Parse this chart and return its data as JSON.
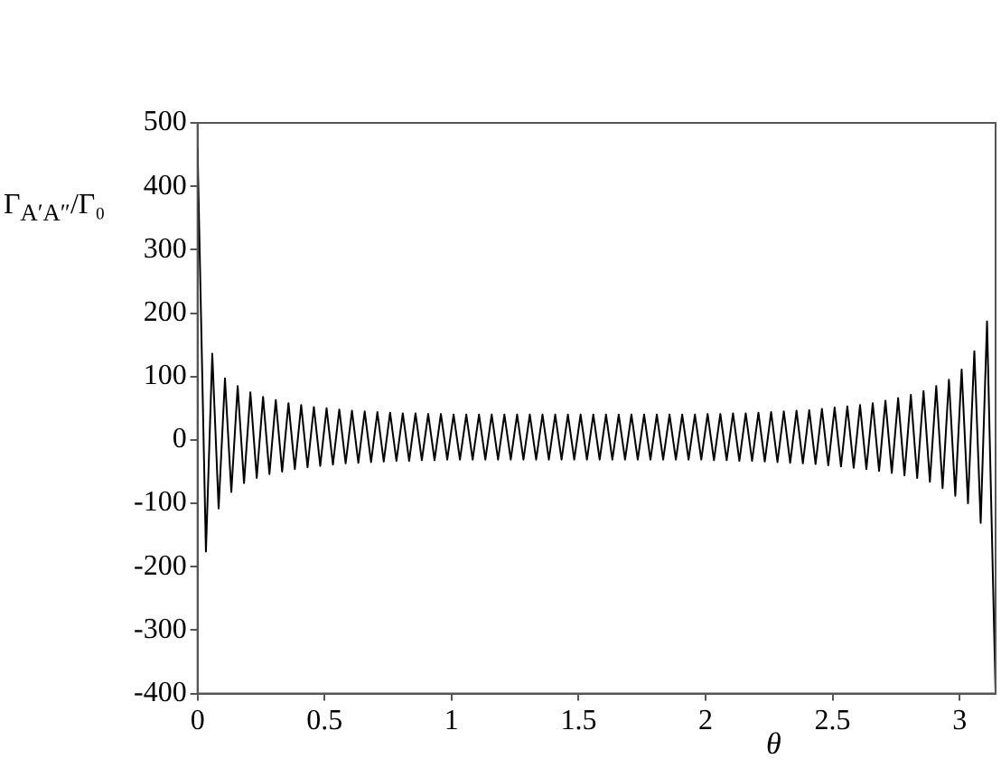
{
  "chart_data": {
    "type": "line",
    "xlabel": "θ",
    "ylabel": "Γ$_{A′A″}$/Γ₀",
    "xlim": [
      0,
      3.1416
    ],
    "xticks": [
      0,
      0.5,
      1,
      1.5,
      2,
      2.5,
      3
    ],
    "ylim": [
      -400,
      500
    ],
    "yticks": [
      -400,
      -300,
      -200,
      -100,
      0,
      100,
      200,
      300,
      400,
      500
    ],
    "grid": false,
    "legend": false,
    "marker": "none",
    "line_style": "solid",
    "series": [
      {
        "color": "#000000",
        "x": [
          0,
          0.033,
          0.058,
          0.083,
          0.108,
          0.133,
          0.158,
          0.183,
          0.208,
          0.233,
          0.258,
          0.283,
          0.308,
          0.333,
          0.358,
          0.383,
          0.408,
          0.433,
          0.458,
          0.483,
          0.508,
          0.533,
          0.558,
          0.583,
          0.608,
          0.633,
          0.658,
          0.683,
          0.708,
          0.733,
          0.758,
          0.783,
          0.808,
          0.833,
          0.858,
          0.883,
          0.908,
          0.933,
          0.958,
          0.983,
          1.008,
          1.033,
          1.058,
          1.083,
          1.108,
          1.133,
          1.158,
          1.183,
          1.208,
          1.233,
          1.258,
          1.283,
          1.308,
          1.333,
          1.358,
          1.383,
          1.408,
          1.433,
          1.458,
          1.483,
          1.508,
          1.533,
          1.558,
          1.583,
          1.608,
          1.633,
          1.658,
          1.683,
          1.708,
          1.733,
          1.758,
          1.783,
          1.808,
          1.833,
          1.858,
          1.883,
          1.908,
          1.933,
          1.958,
          1.983,
          2.008,
          2.033,
          2.058,
          2.083,
          2.108,
          2.133,
          2.158,
          2.183,
          2.208,
          2.233,
          2.258,
          2.283,
          2.308,
          2.333,
          2.358,
          2.383,
          2.408,
          2.433,
          2.458,
          2.483,
          2.508,
          2.533,
          2.558,
          2.583,
          2.608,
          2.633,
          2.658,
          2.683,
          2.708,
          2.733,
          2.758,
          2.783,
          2.808,
          2.833,
          2.858,
          2.883,
          2.908,
          2.933,
          2.958,
          2.983,
          3.008,
          3.033,
          3.058,
          3.083,
          3.108,
          3.1416
        ],
        "values": [
          460,
          -176,
          136,
          -108,
          97,
          -82,
          85,
          -68,
          75,
          -60,
          68,
          -54,
          63,
          -50,
          58,
          -46,
          55,
          -43,
          52,
          -41,
          50,
          -39,
          48,
          -37,
          46,
          -36,
          45,
          -35,
          44,
          -34,
          43,
          -33,
          42,
          -33,
          42,
          -32,
          41,
          -32,
          41,
          -31,
          40,
          -31,
          40,
          -31,
          40,
          -31,
          40,
          -31,
          40,
          -31,
          40,
          -31,
          40,
          -31,
          40,
          -31,
          40,
          -31,
          40,
          -31,
          40,
          -31,
          40,
          -31,
          40,
          -31,
          40,
          -31,
          40,
          -31,
          40,
          -31,
          40,
          -31,
          40,
          -31,
          40,
          -31,
          40,
          -31,
          41,
          -32,
          41,
          -32,
          42,
          -33,
          42,
          -33,
          43,
          -34,
          44,
          -35,
          45,
          -36,
          46,
          -37,
          47,
          -38,
          49,
          -40,
          51,
          -42,
          53,
          -44,
          55,
          -46,
          58,
          -49,
          62,
          -52,
          66,
          -56,
          71,
          -60,
          77,
          -66,
          85,
          -76,
          95,
          -88,
          111,
          -100,
          140,
          -131,
          187,
          -400
        ]
      }
    ]
  }
}
